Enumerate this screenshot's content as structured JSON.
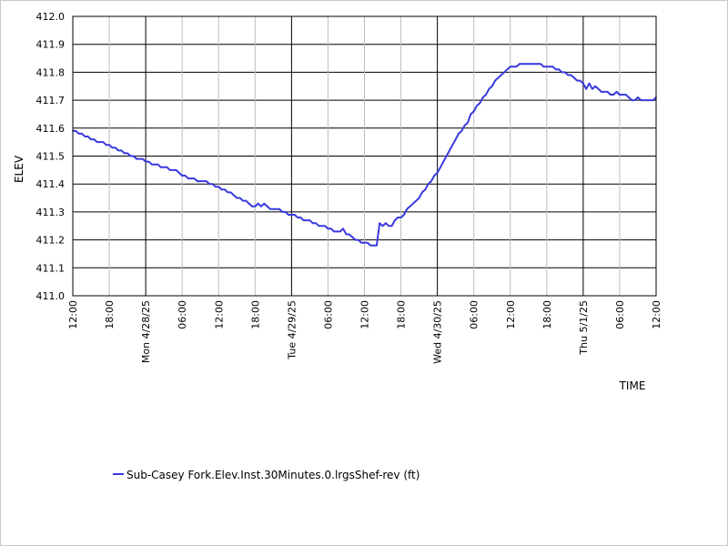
{
  "chart_data": {
    "type": "line",
    "xlabel": "TIME",
    "ylabel": "ELEV",
    "ylim": [
      411.0,
      412.0
    ],
    "y_ticks": [
      "412.0",
      "411.9",
      "411.8",
      "411.7",
      "411.6",
      "411.5",
      "411.4",
      "411.3",
      "411.2",
      "411.1",
      "411.0"
    ],
    "x_unit": "hours",
    "x_range": [
      0,
      96
    ],
    "x_ticks": [
      {
        "x": 0,
        "label": "12:00",
        "major": false
      },
      {
        "x": 6,
        "label": "18:00",
        "major": false
      },
      {
        "x": 12,
        "label": "Mon 4/28/25",
        "major": true
      },
      {
        "x": 18,
        "label": "06:00",
        "major": false
      },
      {
        "x": 24,
        "label": "12:00",
        "major": false
      },
      {
        "x": 30,
        "label": "18:00",
        "major": false
      },
      {
        "x": 36,
        "label": "Tue 4/29/25",
        "major": true
      },
      {
        "x": 42,
        "label": "06:00",
        "major": false
      },
      {
        "x": 48,
        "label": "12:00",
        "major": false
      },
      {
        "x": 54,
        "label": "18:00",
        "major": false
      },
      {
        "x": 60,
        "label": "Wed 4/30/25",
        "major": true
      },
      {
        "x": 66,
        "label": "06:00",
        "major": false
      },
      {
        "x": 72,
        "label": "12:00",
        "major": false
      },
      {
        "x": 78,
        "label": "18:00",
        "major": false
      },
      {
        "x": 84,
        "label": "Thu 5/1/25",
        "major": true
      },
      {
        "x": 90,
        "label": "06:00",
        "major": false
      },
      {
        "x": 96,
        "label": "12:00",
        "major": false
      }
    ],
    "grid": true,
    "legend_position": "bottom-left",
    "series": [
      {
        "name": "Sub-Casey Fork.Elev.Inst.30Minutes.0.lrgsShef-rev (ft)",
        "color": "#3a3adf",
        "points": [
          [
            0,
            411.59
          ],
          [
            0.5,
            411.59
          ],
          [
            1,
            411.58
          ],
          [
            1.5,
            411.58
          ],
          [
            2,
            411.57
          ],
          [
            2.5,
            411.57
          ],
          [
            3,
            411.56
          ],
          [
            3.5,
            411.56
          ],
          [
            4,
            411.55
          ],
          [
            4.5,
            411.55
          ],
          [
            5,
            411.55
          ],
          [
            5.5,
            411.54
          ],
          [
            6,
            411.54
          ],
          [
            6.5,
            411.53
          ],
          [
            7,
            411.53
          ],
          [
            7.5,
            411.52
          ],
          [
            8,
            411.52
          ],
          [
            8.5,
            411.51
          ],
          [
            9,
            411.51
          ],
          [
            9.5,
            411.5
          ],
          [
            10,
            411.5
          ],
          [
            10.5,
            411.49
          ],
          [
            11,
            411.49
          ],
          [
            11.5,
            411.49
          ],
          [
            12,
            411.48
          ],
          [
            12.5,
            411.48
          ],
          [
            13,
            411.47
          ],
          [
            13.5,
            411.47
          ],
          [
            14,
            411.47
          ],
          [
            14.5,
            411.46
          ],
          [
            15,
            411.46
          ],
          [
            15.5,
            411.46
          ],
          [
            16,
            411.45
          ],
          [
            16.5,
            411.45
          ],
          [
            17,
            411.45
          ],
          [
            17.5,
            411.44
          ],
          [
            18,
            411.43
          ],
          [
            18.5,
            411.43
          ],
          [
            19,
            411.42
          ],
          [
            19.5,
            411.42
          ],
          [
            20,
            411.42
          ],
          [
            20.5,
            411.41
          ],
          [
            21,
            411.41
          ],
          [
            21.5,
            411.41
          ],
          [
            22,
            411.41
          ],
          [
            22.5,
            411.4
          ],
          [
            23,
            411.4
          ],
          [
            23.5,
            411.39
          ],
          [
            24,
            411.39
          ],
          [
            24.5,
            411.38
          ],
          [
            25,
            411.38
          ],
          [
            25.5,
            411.37
          ],
          [
            26,
            411.37
          ],
          [
            26.5,
            411.36
          ],
          [
            27,
            411.35
          ],
          [
            27.5,
            411.35
          ],
          [
            28,
            411.34
          ],
          [
            28.5,
            411.34
          ],
          [
            29,
            411.33
          ],
          [
            29.5,
            411.32
          ],
          [
            30,
            411.32
          ],
          [
            30.5,
            411.33
          ],
          [
            31,
            411.32
          ],
          [
            31.5,
            411.33
          ],
          [
            32,
            411.32
          ],
          [
            32.5,
            411.31
          ],
          [
            33,
            411.31
          ],
          [
            33.5,
            411.31
          ],
          [
            34,
            411.31
          ],
          [
            34.5,
            411.3
          ],
          [
            35,
            411.3
          ],
          [
            35.5,
            411.29
          ],
          [
            36,
            411.29
          ],
          [
            36.5,
            411.29
          ],
          [
            37,
            411.28
          ],
          [
            37.5,
            411.28
          ],
          [
            38,
            411.27
          ],
          [
            38.5,
            411.27
          ],
          [
            39,
            411.27
          ],
          [
            39.5,
            411.26
          ],
          [
            40,
            411.26
          ],
          [
            40.5,
            411.25
          ],
          [
            41,
            411.25
          ],
          [
            41.5,
            411.25
          ],
          [
            42,
            411.24
          ],
          [
            42.5,
            411.24
          ],
          [
            43,
            411.23
          ],
          [
            43.5,
            411.23
          ],
          [
            44,
            411.23
          ],
          [
            44.5,
            411.24
          ],
          [
            45,
            411.22
          ],
          [
            45.5,
            411.22
          ],
          [
            46,
            411.21
          ],
          [
            46.5,
            411.2
          ],
          [
            47,
            411.2
          ],
          [
            47.5,
            411.19
          ],
          [
            48,
            411.19
          ],
          [
            48.5,
            411.19
          ],
          [
            49,
            411.18
          ],
          [
            49.5,
            411.18
          ],
          [
            50,
            411.18
          ],
          [
            50.5,
            411.26
          ],
          [
            51,
            411.25
          ],
          [
            51.5,
            411.26
          ],
          [
            52,
            411.25
          ],
          [
            52.5,
            411.25
          ],
          [
            53,
            411.27
          ],
          [
            53.5,
            411.28
          ],
          [
            54,
            411.28
          ],
          [
            54.5,
            411.29
          ],
          [
            55,
            411.31
          ],
          [
            55.5,
            411.32
          ],
          [
            56,
            411.33
          ],
          [
            56.5,
            411.34
          ],
          [
            57,
            411.35
          ],
          [
            57.5,
            411.37
          ],
          [
            58,
            411.38
          ],
          [
            58.5,
            411.4
          ],
          [
            59,
            411.41
          ],
          [
            59.5,
            411.43
          ],
          [
            60,
            411.44
          ],
          [
            60.5,
            411.46
          ],
          [
            61,
            411.48
          ],
          [
            61.5,
            411.5
          ],
          [
            62,
            411.52
          ],
          [
            62.5,
            411.54
          ],
          [
            63,
            411.56
          ],
          [
            63.5,
            411.58
          ],
          [
            64,
            411.59
          ],
          [
            64.5,
            411.61
          ],
          [
            65,
            411.62
          ],
          [
            65.5,
            411.65
          ],
          [
            66,
            411.66
          ],
          [
            66.5,
            411.68
          ],
          [
            67,
            411.69
          ],
          [
            67.5,
            411.71
          ],
          [
            68,
            411.72
          ],
          [
            68.5,
            411.74
          ],
          [
            69,
            411.75
          ],
          [
            69.5,
            411.77
          ],
          [
            70,
            411.78
          ],
          [
            70.5,
            411.79
          ],
          [
            71,
            411.8
          ],
          [
            71.5,
            411.81
          ],
          [
            72,
            411.82
          ],
          [
            72.5,
            411.82
          ],
          [
            73,
            411.82
          ],
          [
            73.5,
            411.83
          ],
          [
            74,
            411.83
          ],
          [
            74.5,
            411.83
          ],
          [
            75,
            411.83
          ],
          [
            75.5,
            411.83
          ],
          [
            76,
            411.83
          ],
          [
            76.5,
            411.83
          ],
          [
            77,
            411.83
          ],
          [
            77.5,
            411.82
          ],
          [
            78,
            411.82
          ],
          [
            78.5,
            411.82
          ],
          [
            79,
            411.82
          ],
          [
            79.5,
            411.81
          ],
          [
            80,
            411.81
          ],
          [
            80.5,
            411.8
          ],
          [
            81,
            411.8
          ],
          [
            81.5,
            411.79
          ],
          [
            82,
            411.79
          ],
          [
            82.5,
            411.78
          ],
          [
            83,
            411.77
          ],
          [
            83.5,
            411.77
          ],
          [
            84,
            411.76
          ],
          [
            84.5,
            411.74
          ],
          [
            85,
            411.76
          ],
          [
            85.5,
            411.74
          ],
          [
            86,
            411.75
          ],
          [
            86.5,
            411.74
          ],
          [
            87,
            411.73
          ],
          [
            87.5,
            411.73
          ],
          [
            88,
            411.73
          ],
          [
            88.5,
            411.72
          ],
          [
            89,
            411.72
          ],
          [
            89.5,
            411.73
          ],
          [
            90,
            411.72
          ],
          [
            90.5,
            411.72
          ],
          [
            91,
            411.72
          ],
          [
            91.5,
            411.71
          ],
          [
            92,
            411.7
          ],
          [
            92.5,
            411.7
          ],
          [
            93,
            411.71
          ],
          [
            93.5,
            411.7
          ],
          [
            94,
            411.7
          ],
          [
            94.5,
            411.7
          ],
          [
            95,
            411.7
          ],
          [
            95.5,
            411.7
          ],
          [
            96,
            411.71
          ]
        ]
      }
    ]
  }
}
